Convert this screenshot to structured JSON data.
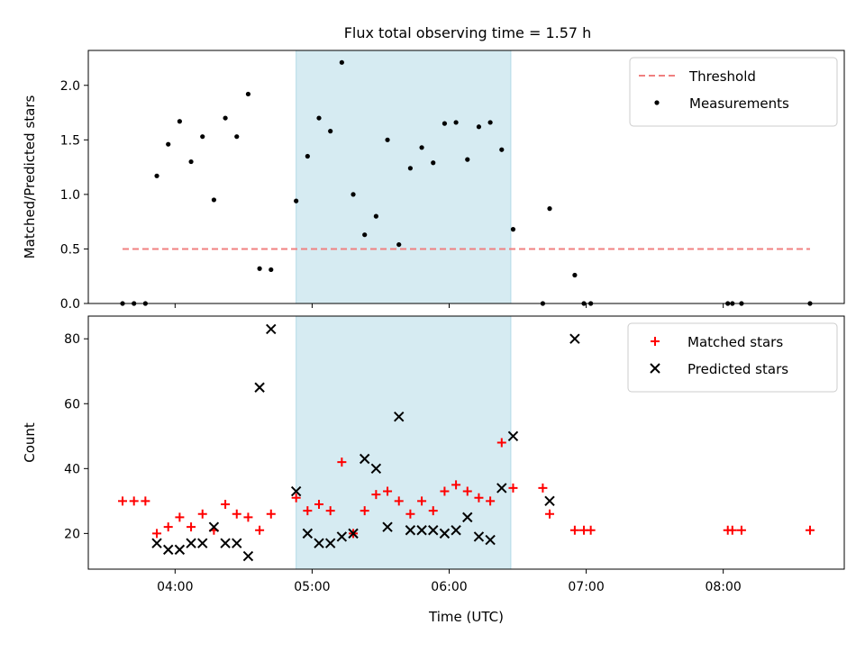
{
  "chart_data": [
    {
      "type": "scatter",
      "title": "Flux total observing time = 1.57 h",
      "xlabel": "",
      "ylabel": "Matched/Predicted stars",
      "xlim": [
        "03:22",
        "08:53"
      ],
      "ylim": [
        0,
        2.32
      ],
      "yticks": [
        "0.0",
        "0.5",
        "1.0",
        "1.5",
        "2.0"
      ],
      "shaded_region": [
        "04:53",
        "06:27"
      ],
      "legend_position": "upper right",
      "threshold": {
        "name": "Threshold",
        "color": "#f08080",
        "y": 0.5,
        "x_range": [
          "03:37",
          "08:38"
        ]
      },
      "series": [
        {
          "name": "Measurements",
          "marker": "dot",
          "color": "#000000",
          "points": [
            [
              "03:37",
              0.0
            ],
            [
              "03:42",
              0.0
            ],
            [
              "03:47",
              0.0
            ],
            [
              "03:52",
              1.17
            ],
            [
              "03:57",
              1.46
            ],
            [
              "04:02",
              1.67
            ],
            [
              "04:07",
              1.3
            ],
            [
              "04:12",
              1.53
            ],
            [
              "04:17",
              0.95
            ],
            [
              "04:22",
              1.7
            ],
            [
              "04:27",
              1.53
            ],
            [
              "04:32",
              1.92
            ],
            [
              "04:37",
              0.32
            ],
            [
              "04:42",
              0.31
            ],
            [
              "04:53",
              0.94
            ],
            [
              "04:58",
              1.35
            ],
            [
              "05:03",
              1.7
            ],
            [
              "05:08",
              1.58
            ],
            [
              "05:13",
              2.21
            ],
            [
              "05:18",
              1.0
            ],
            [
              "05:23",
              0.63
            ],
            [
              "05:28",
              0.8
            ],
            [
              "05:33",
              1.5
            ],
            [
              "05:38",
              0.54
            ],
            [
              "05:43",
              1.24
            ],
            [
              "05:48",
              1.43
            ],
            [
              "05:53",
              1.29
            ],
            [
              "05:58",
              1.65
            ],
            [
              "06:03",
              1.66
            ],
            [
              "06:08",
              1.32
            ],
            [
              "06:13",
              1.62
            ],
            [
              "06:18",
              1.66
            ],
            [
              "06:23",
              1.41
            ],
            [
              "06:28",
              0.68
            ],
            [
              "06:41",
              0.0
            ],
            [
              "06:44",
              0.87
            ],
            [
              "06:55",
              0.26
            ],
            [
              "06:59",
              0.0
            ],
            [
              "07:02",
              0.0
            ],
            [
              "08:02",
              0.0
            ],
            [
              "08:04",
              0.0
            ],
            [
              "08:08",
              0.0
            ],
            [
              "08:38",
              0.0
            ]
          ]
        }
      ]
    },
    {
      "type": "scatter",
      "title": "",
      "xlabel": "Time (UTC)",
      "ylabel": "Count",
      "xlim": [
        "03:22",
        "08:53"
      ],
      "ylim": [
        9,
        87
      ],
      "xticks": [
        "04:00",
        "05:00",
        "06:00",
        "07:00",
        "08:00"
      ],
      "yticks": [
        "20",
        "40",
        "60",
        "80"
      ],
      "shaded_region": [
        "04:53",
        "06:27"
      ],
      "legend_position": "upper right",
      "series": [
        {
          "name": "Matched stars",
          "marker": "plus",
          "color": "#ff0000",
          "points": [
            [
              "03:37",
              30
            ],
            [
              "03:42",
              30
            ],
            [
              "03:47",
              30
            ],
            [
              "03:52",
              20
            ],
            [
              "03:57",
              22
            ],
            [
              "04:02",
              25
            ],
            [
              "04:07",
              22
            ],
            [
              "04:12",
              26
            ],
            [
              "04:17",
              21
            ],
            [
              "04:22",
              29
            ],
            [
              "04:27",
              26
            ],
            [
              "04:32",
              25
            ],
            [
              "04:37",
              21
            ],
            [
              "04:42",
              26
            ],
            [
              "04:53",
              31
            ],
            [
              "04:58",
              27
            ],
            [
              "05:03",
              29
            ],
            [
              "05:08",
              27
            ],
            [
              "05:13",
              42
            ],
            [
              "05:18",
              20
            ],
            [
              "05:23",
              27
            ],
            [
              "05:28",
              32
            ],
            [
              "05:33",
              33
            ],
            [
              "05:38",
              30
            ],
            [
              "05:43",
              26
            ],
            [
              "05:48",
              30
            ],
            [
              "05:53",
              27
            ],
            [
              "05:58",
              33
            ],
            [
              "06:03",
              35
            ],
            [
              "06:08",
              33
            ],
            [
              "06:13",
              31
            ],
            [
              "06:18",
              30
            ],
            [
              "06:23",
              48
            ],
            [
              "06:28",
              34
            ],
            [
              "06:41",
              34
            ],
            [
              "06:44",
              26
            ],
            [
              "06:55",
              21
            ],
            [
              "06:59",
              21
            ],
            [
              "07:02",
              21
            ],
            [
              "08:02",
              21
            ],
            [
              "08:04",
              21
            ],
            [
              "08:08",
              21
            ],
            [
              "08:38",
              21
            ]
          ]
        },
        {
          "name": "Predicted stars",
          "marker": "x",
          "color": "#000000",
          "points": [
            [
              "03:52",
              17
            ],
            [
              "03:57",
              15
            ],
            [
              "04:02",
              15
            ],
            [
              "04:07",
              17
            ],
            [
              "04:12",
              17
            ],
            [
              "04:17",
              22
            ],
            [
              "04:22",
              17
            ],
            [
              "04:27",
              17
            ],
            [
              "04:32",
              13
            ],
            [
              "04:37",
              65
            ],
            [
              "04:42",
              83
            ],
            [
              "04:53",
              33
            ],
            [
              "04:58",
              20
            ],
            [
              "05:03",
              17
            ],
            [
              "05:08",
              17
            ],
            [
              "05:13",
              19
            ],
            [
              "05:18",
              20
            ],
            [
              "05:23",
              43
            ],
            [
              "05:28",
              40
            ],
            [
              "05:33",
              22
            ],
            [
              "05:38",
              56
            ],
            [
              "05:43",
              21
            ],
            [
              "05:48",
              21
            ],
            [
              "05:53",
              21
            ],
            [
              "05:58",
              20
            ],
            [
              "06:03",
              21
            ],
            [
              "06:08",
              25
            ],
            [
              "06:13",
              19
            ],
            [
              "06:18",
              18
            ],
            [
              "06:23",
              34
            ],
            [
              "06:28",
              50
            ],
            [
              "06:44",
              30
            ],
            [
              "06:55",
              80
            ]
          ]
        }
      ]
    }
  ]
}
